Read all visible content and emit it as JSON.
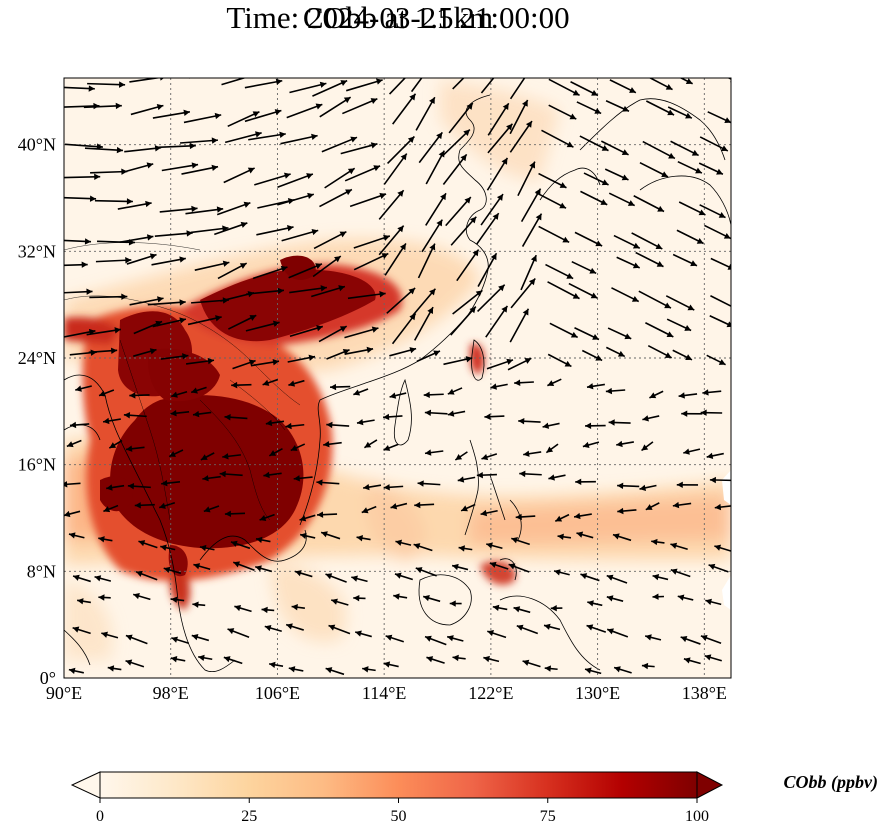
{
  "title_line1": "CObb at 1.5km",
  "title_line2": "Time: 2024-03-21 21:00:00",
  "map": {
    "lon_range": [
      90,
      140
    ],
    "lat_range": [
      0,
      45
    ],
    "lon_ticks": [
      {
        "value": 90,
        "label": "90°E"
      },
      {
        "value": 98,
        "label": "98°E"
      },
      {
        "value": 106,
        "label": "106°E"
      },
      {
        "value": 114,
        "label": "114°E"
      },
      {
        "value": 122,
        "label": "122°E"
      },
      {
        "value": 130,
        "label": "130°E"
      },
      {
        "value": 138,
        "label": "138°E"
      }
    ],
    "lat_ticks": [
      {
        "value": 0,
        "label": "0°"
      },
      {
        "value": 8,
        "label": "8°N"
      },
      {
        "value": 16,
        "label": "16°N"
      },
      {
        "value": 24,
        "label": "24°N"
      },
      {
        "value": 32,
        "label": "32°N"
      },
      {
        "value": 40,
        "label": "40°N"
      }
    ],
    "gridlines": true,
    "arrow_color": "#000000",
    "coastline_color": "#000000"
  },
  "colorbar": {
    "label": "CObb (ppbv)",
    "min": 0,
    "max": 100,
    "ticks": [
      0,
      25,
      50,
      75,
      100
    ],
    "extend": "both",
    "colormap": "OrRd",
    "colors": [
      "#fff7ec",
      "#fee8c8",
      "#fdd49e",
      "#fdbb84",
      "#fc8d59",
      "#ef6548",
      "#d7301f",
      "#b30000",
      "#7f0000"
    ]
  }
}
